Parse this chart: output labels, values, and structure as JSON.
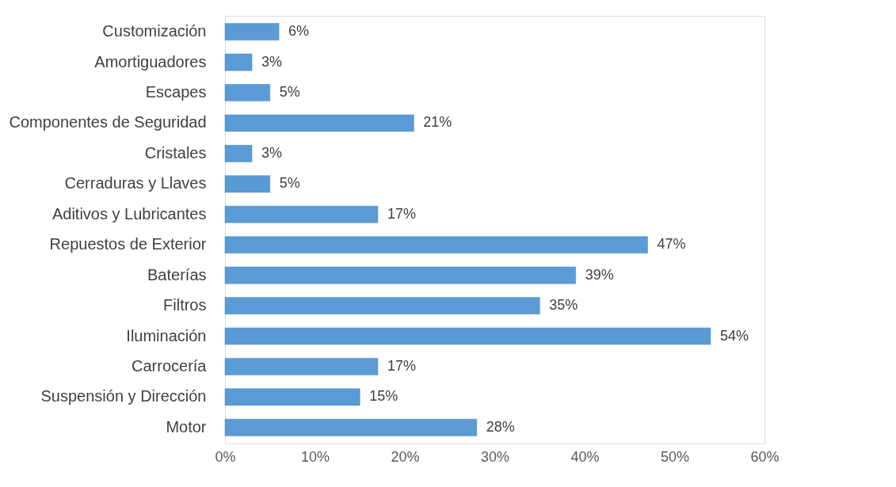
{
  "chart_data": {
    "type": "bar",
    "orientation": "horizontal",
    "categories": [
      "Customización",
      "Amortiguadores",
      "Escapes",
      "Componentes de Seguridad",
      "Cristales",
      "Cerraduras y Llaves",
      "Aditivos y Lubricantes",
      "Repuestos de Exterior",
      "Baterías",
      "Filtros",
      "Iluminación",
      "Carrocería",
      "Suspensión y Dirección",
      "Motor"
    ],
    "values": [
      6,
      3,
      5,
      21,
      3,
      5,
      17,
      47,
      39,
      35,
      54,
      17,
      15,
      28
    ],
    "value_labels": [
      "6%",
      "3%",
      "5%",
      "21%",
      "3%",
      "5%",
      "17%",
      "47%",
      "39%",
      "35%",
      "54%",
      "17%",
      "15%",
      "28%"
    ],
    "color": "#5b9bd5",
    "xlim": [
      0,
      60
    ],
    "xticks": [
      {
        "value": 0,
        "label": "0%"
      },
      {
        "value": 10,
        "label": "10%"
      },
      {
        "value": 20,
        "label": "20%"
      },
      {
        "value": 30,
        "label": "30%"
      },
      {
        "value": 40,
        "label": "40%"
      },
      {
        "value": 50,
        "label": "50%"
      },
      {
        "value": 60,
        "label": "60%"
      }
    ],
    "grid": false
  }
}
